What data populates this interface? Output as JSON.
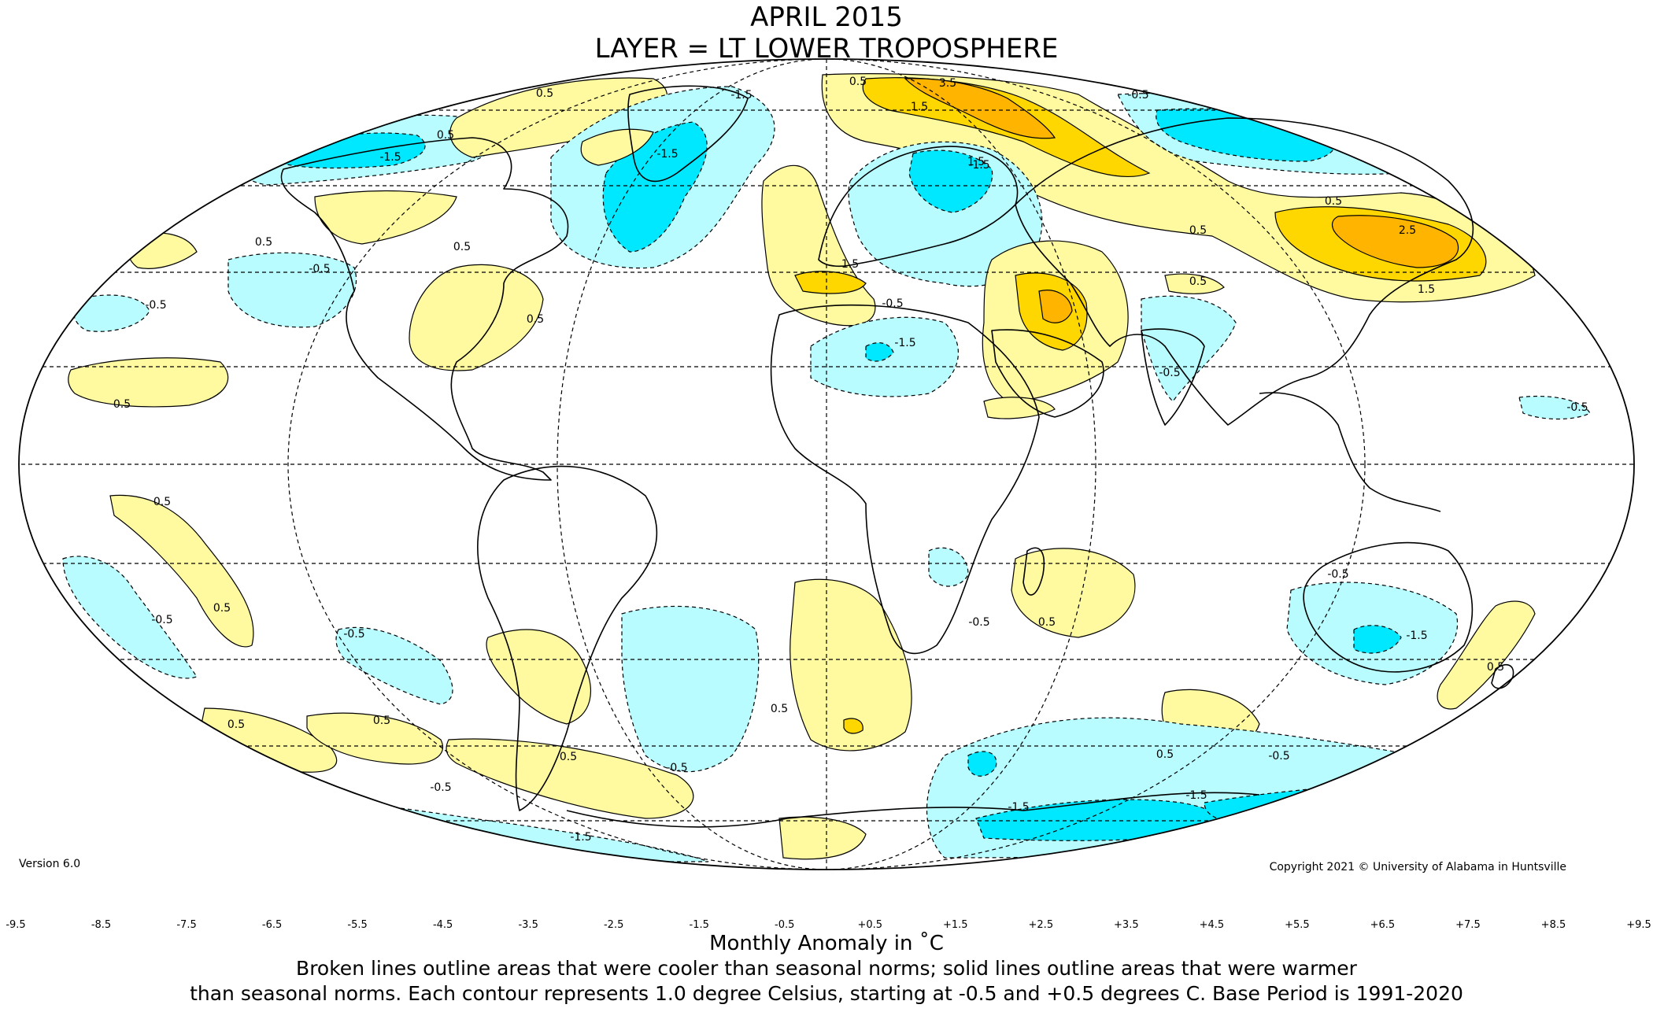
{
  "title": "APRIL 2015",
  "subtitle": "LAYER = LT LOWER TROPOSPHERE",
  "version": "Version 6.0",
  "copyright": "Copyright 2021 © University of Alabama in Huntsville",
  "colorbar": {
    "label": "Monthly Anomaly in ˚C",
    "ticks": [
      "-9.5",
      "-8.5",
      "-7.5",
      "-6.5",
      "-5.5",
      "-4.5",
      "-3.5",
      "-2.5",
      "-1.5",
      "-0.5",
      "+0.5",
      "+1.5",
      "+2.5",
      "+3.5",
      "+4.5",
      "+5.5",
      "+6.5",
      "+7.5",
      "+8.5",
      "+9.5"
    ],
    "colors": [
      "#3b0a5c",
      "#6a0dad",
      "#8b10d8",
      "#b215f5",
      "#0a0a8c",
      "#0a24ff",
      "#0a64ff",
      "#1e90ff",
      "#00bfff",
      "#00e8ff",
      "#b8fcff",
      "#ffffff",
      "#fffaa0",
      "#ffd700",
      "#ffb400",
      "#ffa000",
      "#ff8000",
      "#ff6000",
      "#ff4000",
      "#ff1400",
      "#e00000",
      "#b80000"
    ]
  },
  "caption": {
    "line1": "Broken lines outline areas that were cooler than seasonal norms; solid lines outline areas that were warmer",
    "line2": "than seasonal norms. Each contour represents 1.0 degree Celsius, starting at -0.5 and +0.5 degrees C. Base Period is 1991-2020"
  },
  "map": {
    "projection": "mollweide",
    "contour_labels": [
      "0.5",
      "1.5",
      "2.5",
      "3.5",
      "-0.5",
      "-1.5"
    ],
    "colors": {
      "warm_1": "#fffaa0",
      "warm_2": "#ffd700",
      "warm_3": "#ffb400",
      "cool_1": "#b8fcff",
      "cool_2": "#00e8ff",
      "land_outline": "#000000",
      "grid": "#000000"
    }
  }
}
